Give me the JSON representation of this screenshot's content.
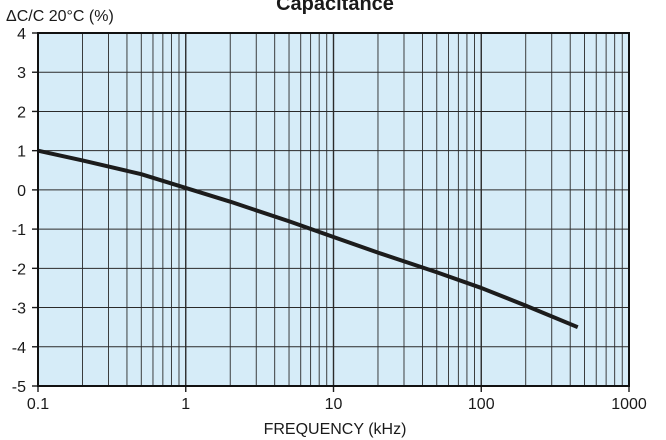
{
  "chart_data": {
    "type": "line",
    "title": "Capacitance",
    "ylabel": "ΔC/C 20°C (%)",
    "xlabel": "FREQUENCY (kHz)",
    "x_scale": "log",
    "xlim": [
      0.1,
      1000
    ],
    "ylim": [
      -5,
      4
    ],
    "x_ticks": [
      0.1,
      1,
      10,
      100,
      1000
    ],
    "x_tick_labels": [
      "0.1",
      "1",
      "10",
      "100",
      "1000"
    ],
    "y_ticks": [
      4,
      3,
      2,
      1,
      0,
      -1,
      -2,
      -3,
      -4,
      -5
    ],
    "y_tick_labels": [
      "4",
      "3",
      "2",
      "1",
      "0",
      "-1",
      "-2",
      "-3",
      "-4",
      "-5"
    ],
    "grid": true,
    "series": [
      {
        "x": [
          0.1,
          0.2,
          0.5,
          1,
          2,
          5,
          10,
          20,
          50,
          100,
          200,
          450
        ],
        "y": [
          1.0,
          0.75,
          0.4,
          0.05,
          -0.3,
          -0.8,
          -1.2,
          -1.6,
          -2.1,
          -2.5,
          -2.95,
          -3.5
        ]
      }
    ],
    "colors": {
      "plot_background": "#d6ecf8",
      "grid_line": "#2a2a2a",
      "curve": "#1c1c1c"
    }
  }
}
